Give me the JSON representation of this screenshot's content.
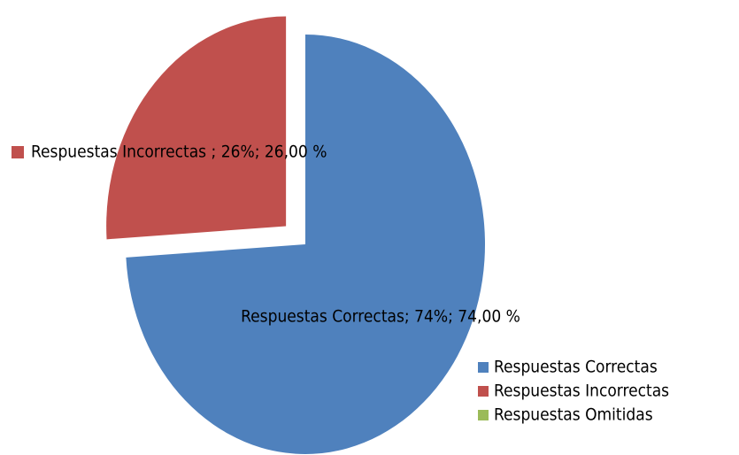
{
  "chart_data": {
    "type": "pie",
    "categories": [
      "Respuestas Correctas",
      "Respuestas Incorrectas",
      "Respuestas Omitidas"
    ],
    "values": [
      74,
      26,
      0
    ],
    "value_labels": [
      "Respuestas Correctas; 74%; 74,00 %",
      "Respuestas Incorrectas ; 26%; 26,00 %",
      null
    ],
    "colors": [
      "#4f81bd",
      "#c0504d",
      "#9bbb59"
    ],
    "exploded": [
      false,
      true,
      false
    ],
    "legend": "bottom-right"
  }
}
